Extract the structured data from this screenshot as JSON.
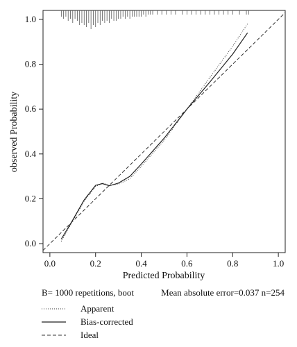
{
  "chart_data": {
    "type": "line",
    "title": "",
    "xlabel": "Predicted Probability",
    "ylabel": "observed Probability",
    "xlim": [
      -0.03,
      1.03
    ],
    "ylim": [
      -0.04,
      1.04
    ],
    "x_ticks": [
      "0.0",
      "0.2",
      "0.4",
      "0.6",
      "0.8",
      "1.0"
    ],
    "y_ticks": [
      "0.0",
      "0.2",
      "0.4",
      "0.6",
      "0.8",
      "1.0"
    ],
    "grid": false,
    "series": [
      {
        "name": "Apparent",
        "style": "dotted",
        "x": [
          0.05,
          0.1,
          0.15,
          0.2,
          0.23,
          0.26,
          0.3,
          0.35,
          0.4,
          0.5,
          0.6,
          0.7,
          0.8,
          0.865
        ],
        "y": [
          0.01,
          0.1,
          0.19,
          0.255,
          0.27,
          0.26,
          0.265,
          0.29,
          0.345,
          0.46,
          0.6,
          0.74,
          0.88,
          0.98
        ]
      },
      {
        "name": "Bias-corrected",
        "style": "solid",
        "x": [
          0.05,
          0.1,
          0.15,
          0.2,
          0.23,
          0.26,
          0.3,
          0.35,
          0.4,
          0.5,
          0.6,
          0.7,
          0.8,
          0.865
        ],
        "y": [
          0.02,
          0.105,
          0.195,
          0.26,
          0.268,
          0.258,
          0.27,
          0.3,
          0.355,
          0.47,
          0.6,
          0.72,
          0.845,
          0.94
        ]
      },
      {
        "name": "Ideal",
        "style": "dashed",
        "x": [
          -0.03,
          1.03
        ],
        "y": [
          -0.03,
          1.03
        ]
      }
    ],
    "rug": {
      "position": "top",
      "values": [
        0.05,
        0.06,
        0.07,
        0.08,
        0.09,
        0.1,
        0.11,
        0.12,
        0.13,
        0.14,
        0.15,
        0.16,
        0.17,
        0.18,
        0.19,
        0.2,
        0.21,
        0.22,
        0.23,
        0.24,
        0.25,
        0.26,
        0.27,
        0.28,
        0.29,
        0.3,
        0.31,
        0.32,
        0.33,
        0.34,
        0.35,
        0.36,
        0.37,
        0.38,
        0.39,
        0.4,
        0.41,
        0.42,
        0.43,
        0.44,
        0.45,
        0.47,
        0.49,
        0.51,
        0.53,
        0.55,
        0.58,
        0.6,
        0.62,
        0.64,
        0.66,
        0.68,
        0.7,
        0.72,
        0.74,
        0.76,
        0.78,
        0.8,
        0.83,
        0.86,
        0.87
      ],
      "counts": [
        2,
        3,
        2,
        4,
        3,
        5,
        3,
        4,
        6,
        5,
        6,
        7,
        5,
        8,
        6,
        7,
        5,
        6,
        4,
        5,
        4,
        5,
        3,
        4,
        4,
        3,
        3,
        2,
        3,
        2,
        3,
        2,
        2,
        2,
        2,
        2,
        1,
        2,
        1,
        1,
        1,
        1,
        1,
        1,
        1,
        1,
        1,
        1,
        1,
        1,
        1,
        1,
        1,
        1,
        1,
        1,
        1,
        1,
        1,
        1,
        1
      ]
    },
    "legend_position": "bottom-left"
  },
  "footer": {
    "left": "B= 1000 repetitions, boot",
    "right": "Mean absolute error=0.037 n=254"
  },
  "legend": {
    "apparent": "Apparent",
    "bias_corrected": "Bias-corrected",
    "ideal": "Ideal"
  }
}
